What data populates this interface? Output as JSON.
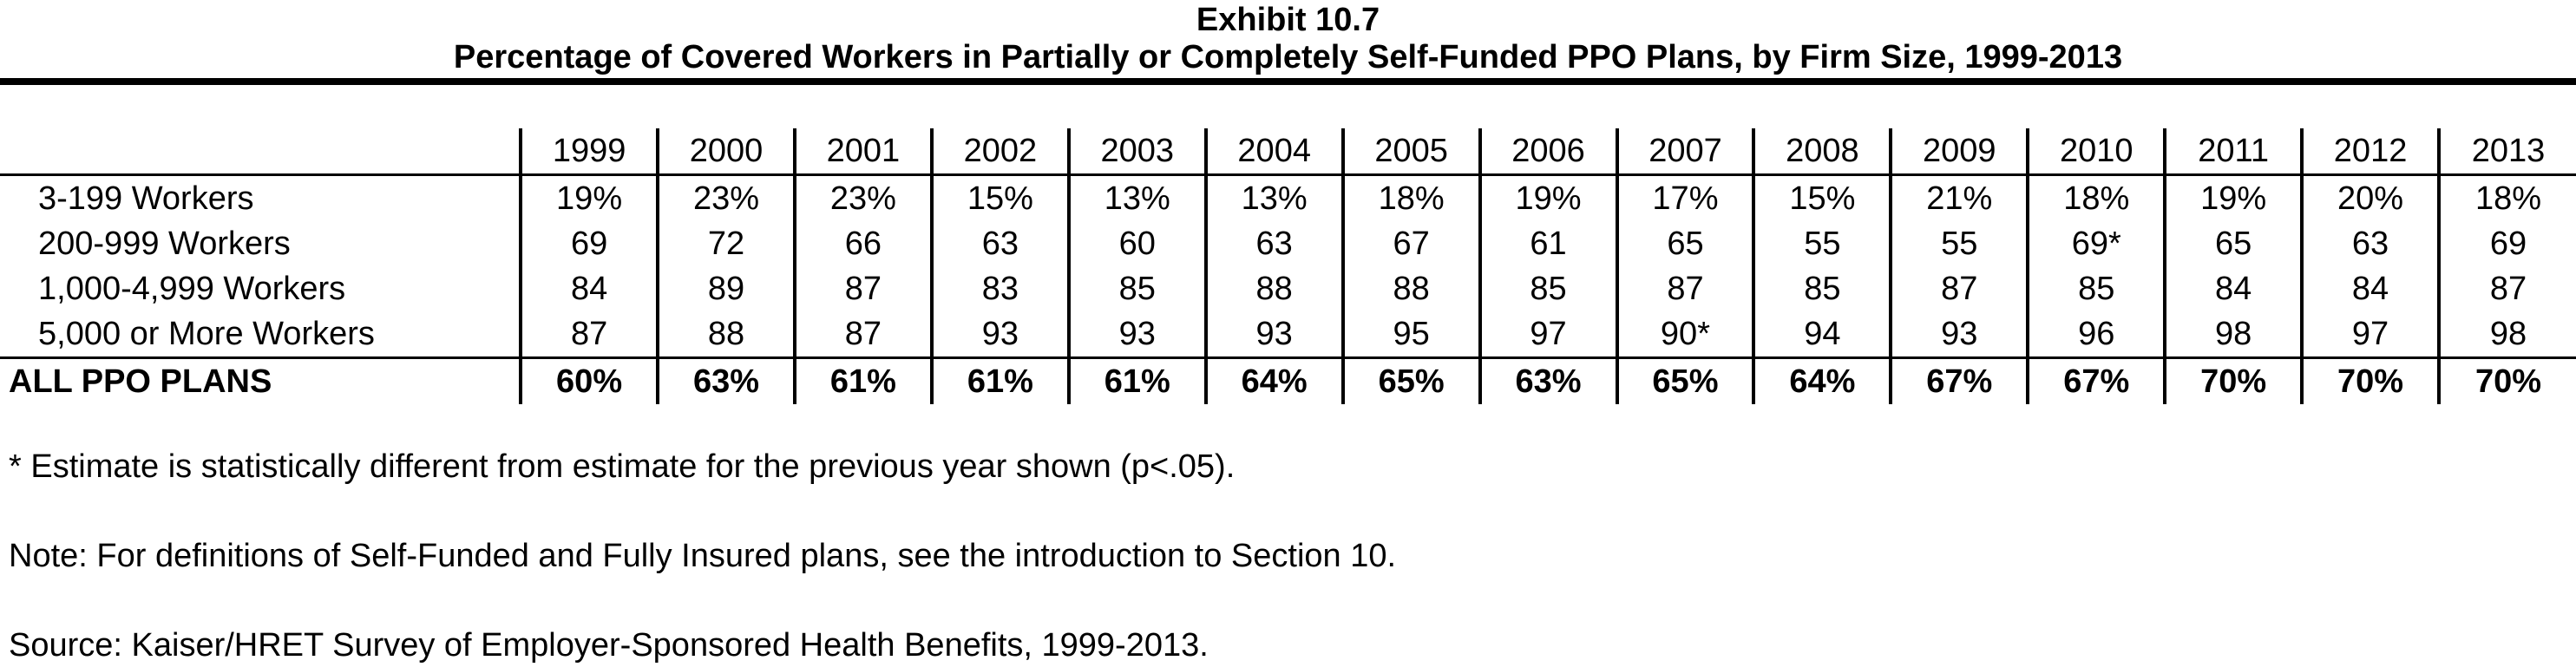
{
  "chart_data": {
    "type": "table",
    "title": "Exhibit 10.7",
    "subtitle": "Percentage of Covered Workers in Partially or Completely Self-Funded PPO Plans, by Firm Size, 1999-2013",
    "columns": [
      "1999",
      "2000",
      "2001",
      "2002",
      "2003",
      "2004",
      "2005",
      "2006",
      "2007",
      "2008",
      "2009",
      "2010",
      "2011",
      "2012",
      "2013"
    ],
    "rows": [
      {
        "label": "3-199 Workers",
        "cells": [
          "19%",
          "23%",
          "23%",
          "15%",
          "13%",
          "13%",
          "18%",
          "19%",
          "17%",
          "15%",
          "21%",
          "18%",
          "19%",
          "20%",
          "18%"
        ]
      },
      {
        "label": "200-999 Workers",
        "cells": [
          "69",
          "72",
          "66",
          "63",
          "60",
          "63",
          "67",
          "61",
          "65",
          "55",
          "55",
          "69*",
          "65",
          "63",
          "69"
        ]
      },
      {
        "label": "1,000-4,999 Workers",
        "cells": [
          "84",
          "89",
          "87",
          "83",
          "85",
          "88",
          "88",
          "85",
          "87",
          "85",
          "87",
          "85",
          "84",
          "84",
          "87"
        ]
      },
      {
        "label": "5,000 or More Workers",
        "cells": [
          "87",
          "88",
          "87",
          "93",
          "93",
          "93",
          "95",
          "97",
          "90*",
          "94",
          "93",
          "96",
          "98",
          "97",
          "98"
        ]
      }
    ],
    "total": {
      "label": "ALL PPO PLANS",
      "cells": [
        "60%",
        "63%",
        "61%",
        "61%",
        "61%",
        "64%",
        "65%",
        "63%",
        "65%",
        "64%",
        "67%",
        "67%",
        "70%",
        "70%",
        "70%"
      ]
    }
  },
  "notes": {
    "significance": "* Estimate is statistically different from estimate for the previous year shown (p<.05).",
    "definitions": "Note: For definitions of Self-Funded and Fully Insured plans, see the introduction to Section 10.",
    "source": "Source: Kaiser/HRET Survey of Employer-Sponsored Health Benefits, 1999-2013."
  }
}
